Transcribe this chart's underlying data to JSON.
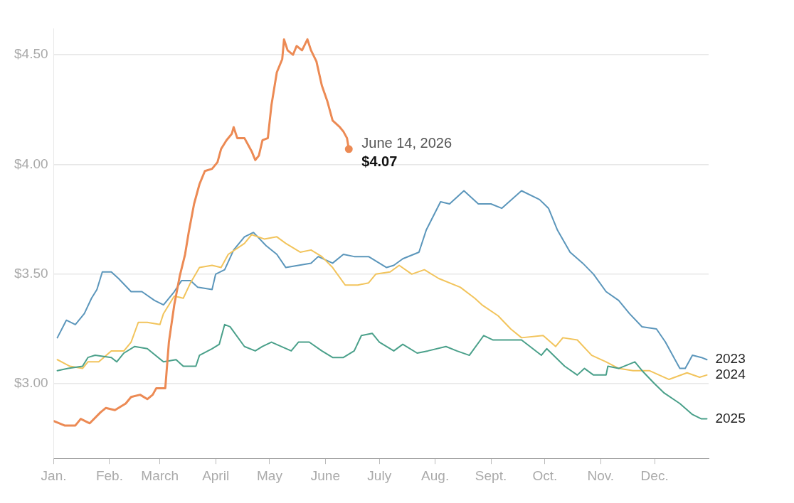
{
  "chart_data": {
    "type": "line",
    "xlim": [
      "--01-01",
      "--12-31"
    ],
    "ylim": [
      2.66,
      4.62
    ],
    "xticks": [
      {
        "value": "--01-01",
        "label": "Jan."
      },
      {
        "value": "--02-01",
        "label": "Feb."
      },
      {
        "value": "--03-01",
        "label": "March"
      },
      {
        "value": "--04-01",
        "label": "April"
      },
      {
        "value": "--05-01",
        "label": "May"
      },
      {
        "value": "--06-01",
        "label": "June"
      },
      {
        "value": "--07-01",
        "label": "July"
      },
      {
        "value": "--08-01",
        "label": "Aug."
      },
      {
        "value": "--09-01",
        "label": "Sept."
      },
      {
        "value": "--10-01",
        "label": "Oct."
      },
      {
        "value": "--11-01",
        "label": "Nov."
      },
      {
        "value": "--12-01",
        "label": "Dec."
      }
    ],
    "yticks": [
      {
        "value": 3,
        "label": "$3.00"
      },
      {
        "value": 3.5,
        "label": "$3.50"
      },
      {
        "value": 4,
        "label": "$4.00"
      },
      {
        "value": 4.5,
        "label": "$4.50"
      }
    ],
    "grid": "y",
    "legend": false,
    "marker": "none",
    "line_style": "solid",
    "annotations": [
      {
        "text": "June 14, 2026",
        "x": "--06-14",
        "y": 4.07
      }
    ],
    "series": [
      {
        "name": "2023",
        "color": "#5b96bb",
        "x": [
          "--01-03",
          "--01-08",
          "--01-13",
          "--01-18",
          "--01-22",
          "--01-25",
          "--01-28",
          "--02-02",
          "--02-06",
          "--02-13",
          "--02-19",
          "--02-26",
          "--03-03",
          "--03-09",
          "--03-13",
          "--03-18",
          "--03-22",
          "--03-30",
          "--04-01",
          "--04-06",
          "--04-11",
          "--04-17",
          "--04-22",
          "--04-29",
          "--05-05",
          "--05-10",
          "--05-17",
          "--05-24",
          "--05-28",
          "--06-05",
          "--06-11",
          "--06-17",
          "--06-25",
          "--07-05",
          "--07-09",
          "--07-14",
          "--07-23",
          "--07-27",
          "--08-04",
          "--08-09",
          "--08-17",
          "--08-25",
          "--09-01",
          "--09-07",
          "--09-18",
          "--09-28",
          "--10-03",
          "--10-08",
          "--10-15",
          "--10-22",
          "--10-28",
          "--11-04",
          "--11-11",
          "--11-17",
          "--11-24",
          "--12-02",
          "--12-07",
          "--12-15",
          "--12-18",
          "--12-22",
          "--12-27",
          "--12-30"
        ],
        "values": [
          3.21,
          3.29,
          3.27,
          3.32,
          3.39,
          3.43,
          3.51,
          3.51,
          3.48,
          3.42,
          3.42,
          3.38,
          3.36,
          3.42,
          3.47,
          3.47,
          3.44,
          3.43,
          3.5,
          3.52,
          3.61,
          3.67,
          3.69,
          3.63,
          3.59,
          3.53,
          3.54,
          3.55,
          3.58,
          3.55,
          3.59,
          3.58,
          3.58,
          3.53,
          3.54,
          3.57,
          3.6,
          3.7,
          3.83,
          3.82,
          3.88,
          3.82,
          3.82,
          3.8,
          3.88,
          3.84,
          3.8,
          3.7,
          3.6,
          3.55,
          3.5,
          3.42,
          3.38,
          3.32,
          3.26,
          3.25,
          3.19,
          3.07,
          3.07,
          3.13,
          3.12,
          3.11
        ]
      },
      {
        "name": "2024",
        "color": "#f2c45c",
        "x": [
          "--01-03",
          "--01-10",
          "--01-17",
          "--01-20",
          "--01-26",
          "--02-02",
          "--02-09",
          "--02-13",
          "--02-17",
          "--02-22",
          "--03-01",
          "--03-03",
          "--03-09",
          "--03-14",
          "--03-18",
          "--03-23",
          "--03-30",
          "--04-04",
          "--04-08",
          "--04-17",
          "--04-21",
          "--04-28",
          "--05-05",
          "--05-10",
          "--05-18",
          "--05-24",
          "--05-30",
          "--06-05",
          "--06-12",
          "--06-19",
          "--06-25",
          "--06-29",
          "--07-07",
          "--07-12",
          "--07-19",
          "--07-26",
          "--08-03",
          "--08-15",
          "--08-23",
          "--08-27",
          "--09-05",
          "--09-12",
          "--09-18",
          "--09-30",
          "--10-07",
          "--10-11",
          "--10-19",
          "--10-27",
          "--11-04",
          "--11-11",
          "--11-19",
          "--11-28",
          "--12-09",
          "--12-19",
          "--12-26",
          "--12-30"
        ],
        "values": [
          3.11,
          3.08,
          3.07,
          3.1,
          3.1,
          3.15,
          3.15,
          3.19,
          3.28,
          3.28,
          3.27,
          3.32,
          3.4,
          3.39,
          3.46,
          3.53,
          3.54,
          3.53,
          3.59,
          3.64,
          3.68,
          3.66,
          3.67,
          3.64,
          3.6,
          3.61,
          3.58,
          3.53,
          3.45,
          3.45,
          3.46,
          3.5,
          3.51,
          3.54,
          3.5,
          3.52,
          3.48,
          3.44,
          3.39,
          3.36,
          3.31,
          3.25,
          3.21,
          3.22,
          3.17,
          3.21,
          3.2,
          3.13,
          3.1,
          3.07,
          3.06,
          3.06,
          3.02,
          3.05,
          3.03,
          3.04
        ]
      },
      {
        "name": "2025",
        "color": "#4aa08a",
        "x": [
          "--01-03",
          "--01-09",
          "--01-17",
          "--01-20",
          "--01-24",
          "--02-02",
          "--02-05",
          "--02-09",
          "--02-15",
          "--02-22",
          "--03-03",
          "--03-10",
          "--03-14",
          "--03-21",
          "--03-23",
          "--03-30",
          "--04-03",
          "--04-06",
          "--04-09",
          "--04-17",
          "--04-23",
          "--04-27",
          "--05-02",
          "--05-13",
          "--05-17",
          "--05-23",
          "--05-30",
          "--06-05",
          "--06-11",
          "--06-17",
          "--06-21",
          "--06-27",
          "--07-01",
          "--07-09",
          "--07-14",
          "--07-22",
          "--07-28",
          "--08-07",
          "--08-13",
          "--08-20",
          "--08-28",
          "--09-02",
          "--09-12",
          "--09-18",
          "--09-29",
          "--10-02",
          "--10-12",
          "--10-19",
          "--10-23",
          "--10-28",
          "--11-04",
          "--11-05",
          "--11-11",
          "--11-20",
          "--11-24",
          "--12-01",
          "--12-06",
          "--12-15",
          "--12-22",
          "--12-27",
          "--12-30"
        ],
        "values": [
          3.06,
          3.07,
          3.08,
          3.12,
          3.13,
          3.12,
          3.1,
          3.14,
          3.17,
          3.16,
          3.1,
          3.11,
          3.08,
          3.08,
          3.13,
          3.16,
          3.18,
          3.27,
          3.26,
          3.17,
          3.15,
          3.17,
          3.19,
          3.15,
          3.19,
          3.19,
          3.15,
          3.12,
          3.12,
          3.15,
          3.22,
          3.23,
          3.19,
          3.15,
          3.18,
          3.14,
          3.15,
          3.17,
          3.15,
          3.13,
          3.22,
          3.2,
          3.2,
          3.2,
          3.13,
          3.16,
          3.08,
          3.04,
          3.07,
          3.04,
          3.04,
          3.08,
          3.07,
          3.1,
          3.06,
          3.0,
          2.96,
          2.91,
          2.86,
          2.84,
          2.84
        ]
      },
      {
        "color": "#ec8a54",
        "x": [
          "--01-01",
          "--01-07",
          "--01-13",
          "--01-16",
          "--01-21",
          "--01-27",
          "--01-30",
          "--02-04",
          "--02-10",
          "--02-13",
          "--02-18",
          "--02-22",
          "--02-25",
          "--02-27",
          "--03-04",
          "--03-06",
          "--03-09",
          "--03-12",
          "--03-15",
          "--03-17",
          "--03-20",
          "--03-23",
          "--03-26",
          "--03-30",
          "--04-02",
          "--04-04",
          "--04-07",
          "--04-10",
          "--04-11",
          "--04-13",
          "--04-17",
          "--04-21",
          "--04-23",
          "--04-25",
          "--04-27",
          "--04-30",
          "--05-02",
          "--05-05",
          "--05-08",
          "--05-09",
          "--05-11",
          "--05-14",
          "--05-16",
          "--05-19",
          "--05-22",
          "--05-24",
          "--05-27",
          "--05-30",
          "--06-02",
          "--06-05",
          "--06-09",
          "--06-11",
          "--06-13",
          "--06-14"
        ],
        "values": [
          2.83,
          2.81,
          2.81,
          2.84,
          2.82,
          2.87,
          2.89,
          2.88,
          2.91,
          2.94,
          2.95,
          2.93,
          2.95,
          2.98,
          2.98,
          3.19,
          3.36,
          3.49,
          3.59,
          3.69,
          3.82,
          3.91,
          3.97,
          3.98,
          4.01,
          4.07,
          4.11,
          4.14,
          4.17,
          4.12,
          4.12,
          4.06,
          4.02,
          4.04,
          4.11,
          4.12,
          4.27,
          4.42,
          4.48,
          4.57,
          4.52,
          4.5,
          4.54,
          4.52,
          4.57,
          4.52,
          4.47,
          4.36,
          4.29,
          4.2,
          4.17,
          4.15,
          4.12,
          4.07
        ],
        "value_labels": [
          null,
          null,
          null,
          null,
          null,
          null,
          null,
          null,
          null,
          null,
          null,
          null,
          null,
          null,
          null,
          null,
          null,
          null,
          null,
          null,
          null,
          null,
          null,
          null,
          null,
          null,
          null,
          null,
          null,
          null,
          null,
          null,
          null,
          null,
          null,
          null,
          null,
          null,
          null,
          null,
          null,
          null,
          null,
          null,
          null,
          null,
          null,
          null,
          null,
          null,
          null,
          null,
          null,
          "$4.07"
        ]
      }
    ]
  }
}
